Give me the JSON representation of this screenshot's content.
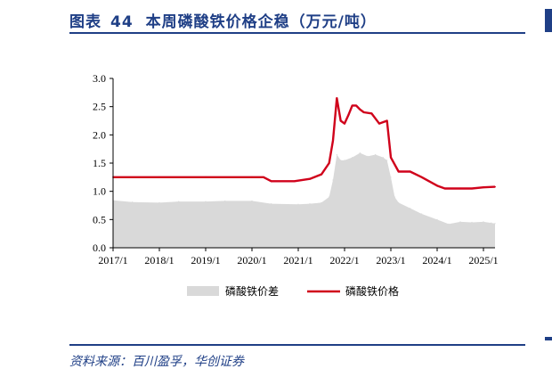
{
  "figure": {
    "label": "图表",
    "number": "44",
    "title": "本周磷酸铁价格企稳（万元/吨）",
    "source": "资料来源：百川盈孚，华创证券"
  },
  "colors": {
    "brand": "#1f3f86",
    "area": "#d9d9d9",
    "line": "#d0021b"
  },
  "chart_data": {
    "type": "line",
    "ylim": [
      0,
      3.0
    ],
    "y_ticks": [
      "0.0",
      "0.5",
      "1.0",
      "1.5",
      "2.0",
      "2.5",
      "3.0"
    ],
    "x_ticks": [
      "2017/1",
      "2018/1",
      "2019/1",
      "2020/1",
      "2021/1",
      "2022/1",
      "2023/1",
      "2024/1",
      "2025/1"
    ],
    "xlim": [
      "2017/1",
      "2025/4"
    ],
    "grid": false,
    "legend_position": "bottom",
    "series": [
      {
        "name": "磷酸铁价差",
        "type": "area",
        "x": [
          "2017/1",
          "2017/6",
          "2018/1",
          "2018/6",
          "2019/1",
          "2019/6",
          "2020/1",
          "2020/6",
          "2021/1",
          "2021/4",
          "2021/7",
          "2021/9",
          "2021/10",
          "2021/11",
          "2021/12",
          "2022/1",
          "2022/3",
          "2022/5",
          "2022/7",
          "2022/9",
          "2022/11",
          "2022/12",
          "2023/1",
          "2023/2",
          "2023/3",
          "2023/6",
          "2023/9",
          "2024/1",
          "2024/4",
          "2024/7",
          "2024/10",
          "2025/1",
          "2025/3",
          "2025/4"
        ],
        "values": [
          0.84,
          0.81,
          0.8,
          0.82,
          0.82,
          0.83,
          0.83,
          0.78,
          0.77,
          0.78,
          0.8,
          0.9,
          1.2,
          1.65,
          1.55,
          1.55,
          1.6,
          1.68,
          1.62,
          1.65,
          1.6,
          1.55,
          1.25,
          0.9,
          0.8,
          0.7,
          0.6,
          0.5,
          0.42,
          0.46,
          0.45,
          0.46,
          0.44,
          0.43
        ]
      },
      {
        "name": "磷酸铁价格",
        "type": "line",
        "x": [
          "2017/1",
          "2018/1",
          "2019/1",
          "2020/1",
          "2020/4",
          "2020/6",
          "2020/12",
          "2021/4",
          "2021/7",
          "2021/9",
          "2021/10",
          "2021/11",
          "2021/12",
          "2022/1",
          "2022/2",
          "2022/3",
          "2022/4",
          "2022/5",
          "2022/6",
          "2022/8",
          "2022/10",
          "2022/12",
          "2023/1",
          "2023/3",
          "2023/6",
          "2023/9",
          "2024/1",
          "2024/3",
          "2024/5",
          "2024/7",
          "2024/10",
          "2025/1",
          "2025/4"
        ],
        "values": [
          1.25,
          1.25,
          1.25,
          1.25,
          1.25,
          1.18,
          1.18,
          1.22,
          1.3,
          1.5,
          1.9,
          2.65,
          2.25,
          2.2,
          2.35,
          2.52,
          2.52,
          2.45,
          2.4,
          2.38,
          2.2,
          2.25,
          1.6,
          1.35,
          1.35,
          1.25,
          1.1,
          1.05,
          1.05,
          1.05,
          1.05,
          1.07,
          1.08
        ]
      }
    ]
  }
}
